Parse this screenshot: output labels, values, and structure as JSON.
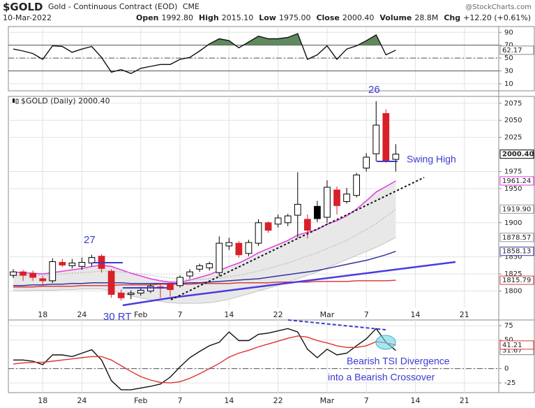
{
  "header": {
    "symbol": "$GOLD",
    "name": "Gold - Continuous Contract (EOD)",
    "exchange": "CME",
    "date": "10-Mar-2022",
    "source": "@StockCharts.com",
    "stats": [
      {
        "label": "Open",
        "value": "1992.80"
      },
      {
        "label": "High",
        "value": "2015.10"
      },
      {
        "label": "Low",
        "value": "1975.00"
      },
      {
        "label": "Close",
        "value": "2000.40"
      },
      {
        "label": "Volume",
        "value": "28.8M"
      },
      {
        "label": "Chg",
        "value": "+12.20 (+0.61%)"
      }
    ]
  },
  "chart_data": {
    "type": "candlestick",
    "legend": "$GOLD (Daily) 2000.40",
    "categories": [
      null,
      null,
      null,
      "18",
      null,
      null,
      null,
      "24",
      null,
      null,
      null,
      null,
      null,
      "Feb",
      null,
      null,
      null,
      "7",
      null,
      null,
      null,
      null,
      "14",
      null,
      null,
      null,
      null,
      "22",
      null,
      null,
      null,
      null,
      "Mar",
      null,
      null,
      null,
      "7",
      null,
      null,
      null,
      null,
      "14",
      null,
      null,
      null,
      null,
      "21",
      null,
      null,
      null
    ],
    "ylim": [
      1776,
      2085
    ],
    "yticks": [
      1800,
      1825,
      1850,
      1900,
      1950,
      1975,
      2025,
      2050,
      2075
    ],
    "grid": true,
    "up_color": "#000000",
    "down_color": "#d8202a",
    "price": {
      "open": [
        1823,
        1828,
        1826,
        1818,
        1815,
        1842,
        1837,
        1836,
        1841,
        1851,
        1829,
        1797,
        1795,
        1797,
        1800,
        1806,
        1810,
        1808,
        1822,
        1832,
        1834,
        1827,
        1866,
        1870,
        1855,
        1870,
        1900,
        1898,
        1900,
        1911,
        1905,
        1924,
        1908,
        1948,
        1931,
        1940,
        1980,
        2001,
        2060,
        1992.8,
        null,
        null,
        null,
        null,
        null,
        null,
        null,
        null,
        null,
        null
      ],
      "high": [
        1832,
        1831,
        1830,
        1822,
        1848,
        1847,
        1847,
        1849,
        1853,
        1854,
        1832,
        1802,
        1801,
        1806,
        1810,
        1810,
        1812,
        1823,
        1832,
        1840,
        1843,
        1880,
        1878,
        1873,
        1875,
        1905,
        1902,
        1912,
        1913,
        1974,
        1912,
        1932,
        1962,
        1953,
        1951,
        1973,
        2002,
        2078,
        2066,
        2015.1,
        null,
        null,
        null,
        null,
        null,
        null,
        null,
        null,
        null,
        null
      ],
      "low": [
        1819,
        1815,
        1815,
        1808,
        1812,
        1835,
        1833,
        1831,
        1836,
        1827,
        1790,
        1786,
        1788,
        1793,
        1797,
        1790,
        1792,
        1805,
        1818,
        1828,
        1830,
        1822,
        1860,
        1849,
        1851,
        1866,
        1885,
        1893,
        1895,
        1878,
        1877,
        1901,
        1900,
        1912,
        1928,
        1937,
        1975,
        1990,
        1988,
        1975,
        null,
        null,
        null,
        null,
        null,
        null,
        null,
        null,
        null,
        null
      ],
      "close": [
        1828,
        1823,
        1820,
        1815,
        1843,
        1838,
        1841,
        1842,
        1849,
        1833,
        1795,
        1790,
        1797,
        1801,
        1807,
        1804,
        1802,
        1820,
        1828,
        1837,
        1840,
        1870,
        1871,
        1853,
        1871,
        1900,
        1889,
        1907,
        1910,
        1927,
        1889,
        1906,
        1952,
        1925,
        1942,
        1970,
        1996,
        2043,
        1990,
        2000.4,
        null,
        null,
        null,
        null,
        null,
        null,
        null,
        null,
        null,
        null
      ],
      "value_labels": [
        null,
        null,
        null,
        null,
        null,
        null,
        null,
        null,
        null,
        null,
        null,
        null,
        null,
        null,
        null,
        null,
        null,
        null,
        null,
        null,
        null,
        null,
        null,
        null,
        null,
        null,
        null,
        null,
        null,
        null,
        null,
        null,
        null,
        null,
        null,
        null,
        null,
        null,
        null,
        "2000.40",
        null,
        null,
        null,
        null,
        null,
        null,
        null,
        null,
        null,
        null
      ]
    },
    "band": {
      "color": "#e8e8e8",
      "edge": "#c4c4c4",
      "values": [
        1800,
        1800,
        1801,
        1801,
        1801,
        1802,
        1802,
        1803,
        1803,
        1803,
        1800,
        1797,
        1793,
        1790,
        1787,
        1785,
        1783,
        1782,
        1782,
        1782,
        1783,
        1785,
        1788,
        1792,
        1796,
        1800,
        1804,
        1808,
        1813,
        1818,
        1823,
        1828,
        1834,
        1840,
        1846,
        1852,
        1858,
        1864,
        1871,
        1878.57,
        null,
        null,
        null,
        null,
        null,
        null,
        null,
        null,
        null,
        null
      ]
    },
    "overlays": [
      {
        "color": "#e23be0",
        "values": [
          1828,
          1827,
          1826,
          1825,
          1827,
          1829,
          1831,
          1833,
          1836,
          1838,
          1836,
          1831,
          1826,
          1822,
          1818,
          1815,
          1813,
          1813,
          1816,
          1820,
          1824,
          1830,
          1836,
          1841,
          1848,
          1856,
          1862,
          1868,
          1874,
          1882,
          1886,
          1890,
          1898,
          1903,
          1910,
          1920,
          1932,
          1945,
          1953,
          1961.24,
          null,
          null,
          null,
          null,
          null,
          null,
          null,
          null,
          null,
          null
        ]
      },
      {
        "color": "#b8b8b8",
        "dash": true,
        "values": [
          1822,
          1823,
          1823,
          1823,
          1824,
          1825,
          1826,
          1827,
          1828,
          1829,
          1829,
          1828,
          1827,
          1825,
          1823,
          1821,
          1819,
          1818,
          1817,
          1817,
          1818,
          1819,
          1821,
          1823,
          1826,
          1829,
          1833,
          1837,
          1841,
          1846,
          1851,
          1856,
          1862,
          1868,
          1874,
          1882,
          1890,
          1899,
          1909,
          1919.9,
          null,
          null,
          null,
          null,
          null,
          null,
          null,
          null,
          null,
          null
        ],
        "value_labels": [
          null,
          null,
          null,
          null,
          null,
          null,
          null,
          null,
          null,
          null,
          null,
          null,
          null,
          null,
          null,
          null,
          null,
          null,
          null,
          null,
          null,
          null,
          null,
          null,
          null,
          null,
          null,
          null,
          null,
          null,
          null,
          null,
          null,
          null,
          null,
          null,
          null,
          null,
          null,
          "1919.90",
          null,
          null,
          null,
          null,
          null,
          null,
          null,
          null,
          null,
          null
        ]
      },
      {
        "color": "#34349e",
        "values": [
          1808,
          1808,
          1809,
          1809,
          1810,
          1810,
          1811,
          1811,
          1812,
          1812,
          1812,
          1812,
          1811,
          1811,
          1811,
          1811,
          1811,
          1811,
          1812,
          1812,
          1813,
          1814,
          1815,
          1816,
          1817,
          1818,
          1820,
          1822,
          1824,
          1826,
          1828,
          1830,
          1833,
          1836,
          1839,
          1842,
          1845,
          1849,
          1853,
          1858.13,
          null,
          null,
          null,
          null,
          null,
          null,
          null,
          null,
          null,
          null
        ]
      },
      {
        "color": "#d84040",
        "values": [
          1806,
          1806,
          1806,
          1807,
          1807,
          1807,
          1807,
          1808,
          1808,
          1808,
          1808,
          1809,
          1809,
          1809,
          1809,
          1810,
          1810,
          1810,
          1810,
          1811,
          1811,
          1811,
          1811,
          1812,
          1812,
          1812,
          1812,
          1813,
          1813,
          1813,
          1813,
          1814,
          1814,
          1814,
          1814,
          1815,
          1815,
          1815,
          1815,
          1815.79,
          null,
          null,
          null,
          null,
          null,
          null,
          null,
          null,
          null,
          null
        ]
      }
    ],
    "annotations": [
      "26",
      "27",
      "30 RT",
      "Swing High",
      "Bearish TSI Divergence",
      "into a Bearish Crossover"
    ],
    "upper": {
      "type": "line",
      "color": "#111111",
      "fill_color": "#5f8a5f",
      "fill_above": 70,
      "ylim": [
        -1,
        99
      ],
      "yticks": [
        90,
        70,
        50,
        30,
        10
      ],
      "ref_lines": [
        {
          "value": 70,
          "dash": false
        },
        {
          "value": 50,
          "dash": true
        },
        {
          "value": 30,
          "dash": false
        }
      ],
      "values": [
        64,
        61,
        57,
        48,
        69,
        68,
        59,
        64,
        68,
        51,
        28,
        32,
        26,
        34,
        37,
        40,
        40,
        48,
        51,
        61,
        72,
        80,
        77,
        66,
        75,
        84,
        80,
        80,
        82,
        88,
        48,
        55,
        69,
        48,
        64,
        69,
        77,
        86,
        55,
        62.17,
        null,
        null,
        null,
        null,
        null,
        null,
        null,
        null,
        null,
        null
      ]
    },
    "lower": {
      "type": "line",
      "ylim": [
        -42,
        85
      ],
      "yticks": [
        75,
        50,
        0,
        -25
      ],
      "ref_line": 0,
      "series": [
        {
          "color": "#111111",
          "values": [
            15,
            15,
            13,
            7,
            24,
            24,
            21,
            27,
            33,
            15,
            -21,
            -37,
            -37,
            -34,
            -31,
            -27,
            -15,
            3,
            19,
            30,
            40,
            46,
            64,
            49,
            49,
            60,
            62,
            66,
            70,
            64,
            34,
            19,
            34,
            24,
            27,
            40,
            52,
            70,
            46,
            31.67,
            null,
            null,
            null,
            null,
            null,
            null,
            null,
            null,
            null,
            null
          ]
        },
        {
          "color": "#e03030",
          "values": [
            8,
            10,
            11,
            11,
            13,
            15,
            17,
            19,
            21,
            21,
            15,
            5,
            -5,
            -14,
            -20,
            -24,
            -25,
            -23,
            -17,
            -9,
            0,
            9,
            20,
            27,
            32,
            38,
            43,
            48,
            53,
            57,
            55,
            49,
            45,
            40,
            37,
            37,
            40,
            47,
            45,
            41.21,
            null,
            null,
            null,
            null,
            null,
            null,
            null,
            null,
            null,
            null
          ]
        }
      ]
    }
  }
}
